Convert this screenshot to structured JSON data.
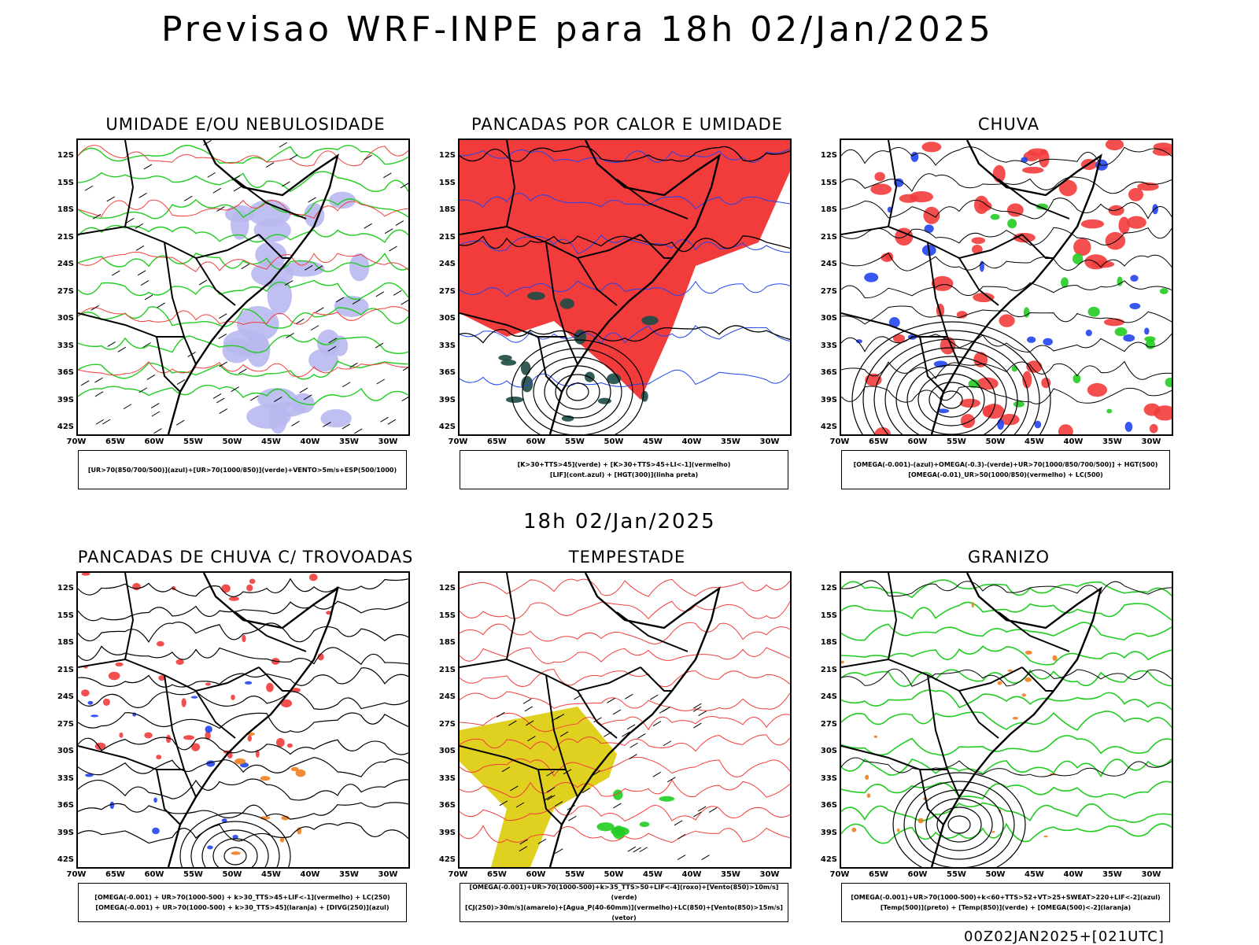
{
  "title": "Previsao WRF-INPE  para 18h 02/Jan/2025",
  "mid_title": "18h 02/Jan/2025",
  "footer": "00Z02JAN2025+[021UTC]",
  "lat_labels": [
    "12S",
    "15S",
    "18S",
    "21S",
    "24S",
    "27S",
    "30S",
    "33S",
    "36S",
    "39S",
    "42S"
  ],
  "lon_labels": [
    "70W",
    "65W",
    "60W",
    "55W",
    "50W",
    "45W",
    "40W",
    "35W",
    "30W"
  ],
  "colors": {
    "red": "#f23c3c",
    "green": "#22cc22",
    "blue": "#2244ee",
    "lavender": "#b8b8f0",
    "dark": "#1e4a44",
    "yellow": "#e0d020",
    "orange": "#f08020",
    "purple": "#aa22cc"
  },
  "panels": [
    {
      "title": "UMIDADE E/OU NEBULOSIDADE",
      "legend": [
        "[UR>70(850/700/500)](azul)+[UR>70(1000/850)](verde)+VENTO>5m/s+ESP(500/1000)"
      ]
    },
    {
      "title": "PANCADAS POR CALOR E UMIDADE",
      "legend": [
        "[K>30+TTS>45](verde) + [K>30+TTS>45+LI<-1](vermelho)",
        "[LIF](cont.azul) + [HGT(300)](linha preta)"
      ]
    },
    {
      "title": "CHUVA",
      "legend": [
        "[OMEGA(-0.001)-(azul)+OMEGA(-0.3)-(verde)+UR>70(1000/850/700/500)] + HGT(500)",
        "[OMEGA(-0.01)_UR>50(1000/850)(vermelho) + LC(500)"
      ]
    },
    {
      "title": "PANCADAS DE CHUVA C/ TROVOADAS",
      "legend": [
        "[OMEGA(-0.001) + UR>70(1000-500) + k>30_TTS>45+LIF<-1](vermelho) + LC(250)",
        "[OMEGA(-0.001) + UR>70(1000-500) + k>30_TTS>45](laranja) + [DIVG(250)](azul)"
      ]
    },
    {
      "title": "TEMPESTADE",
      "legend": [
        "[OMEGA(-0.001)+UR>70(1000-500)+k>35_TTS>50+LIF<-4](roxo)+[Vento(850)>10m/s](verde)",
        "[CJ(250)>30m/s](amarelo)+[Agua_P(40-60mm)](vermelho)+LC(850)+[Vento(850)>15m/s](vetor)"
      ]
    },
    {
      "title": "GRANIZO",
      "legend": [
        "[OMEGA(-0.001)+UR>70(1000-500)+k<60+TTS>52+VT>25+SWEAT>220+LIF<-2](azul)",
        "[Temp(500)](preto) + [Temp(850)](verde) + [OMEGA(500)<-2](laranja)"
      ]
    }
  ]
}
